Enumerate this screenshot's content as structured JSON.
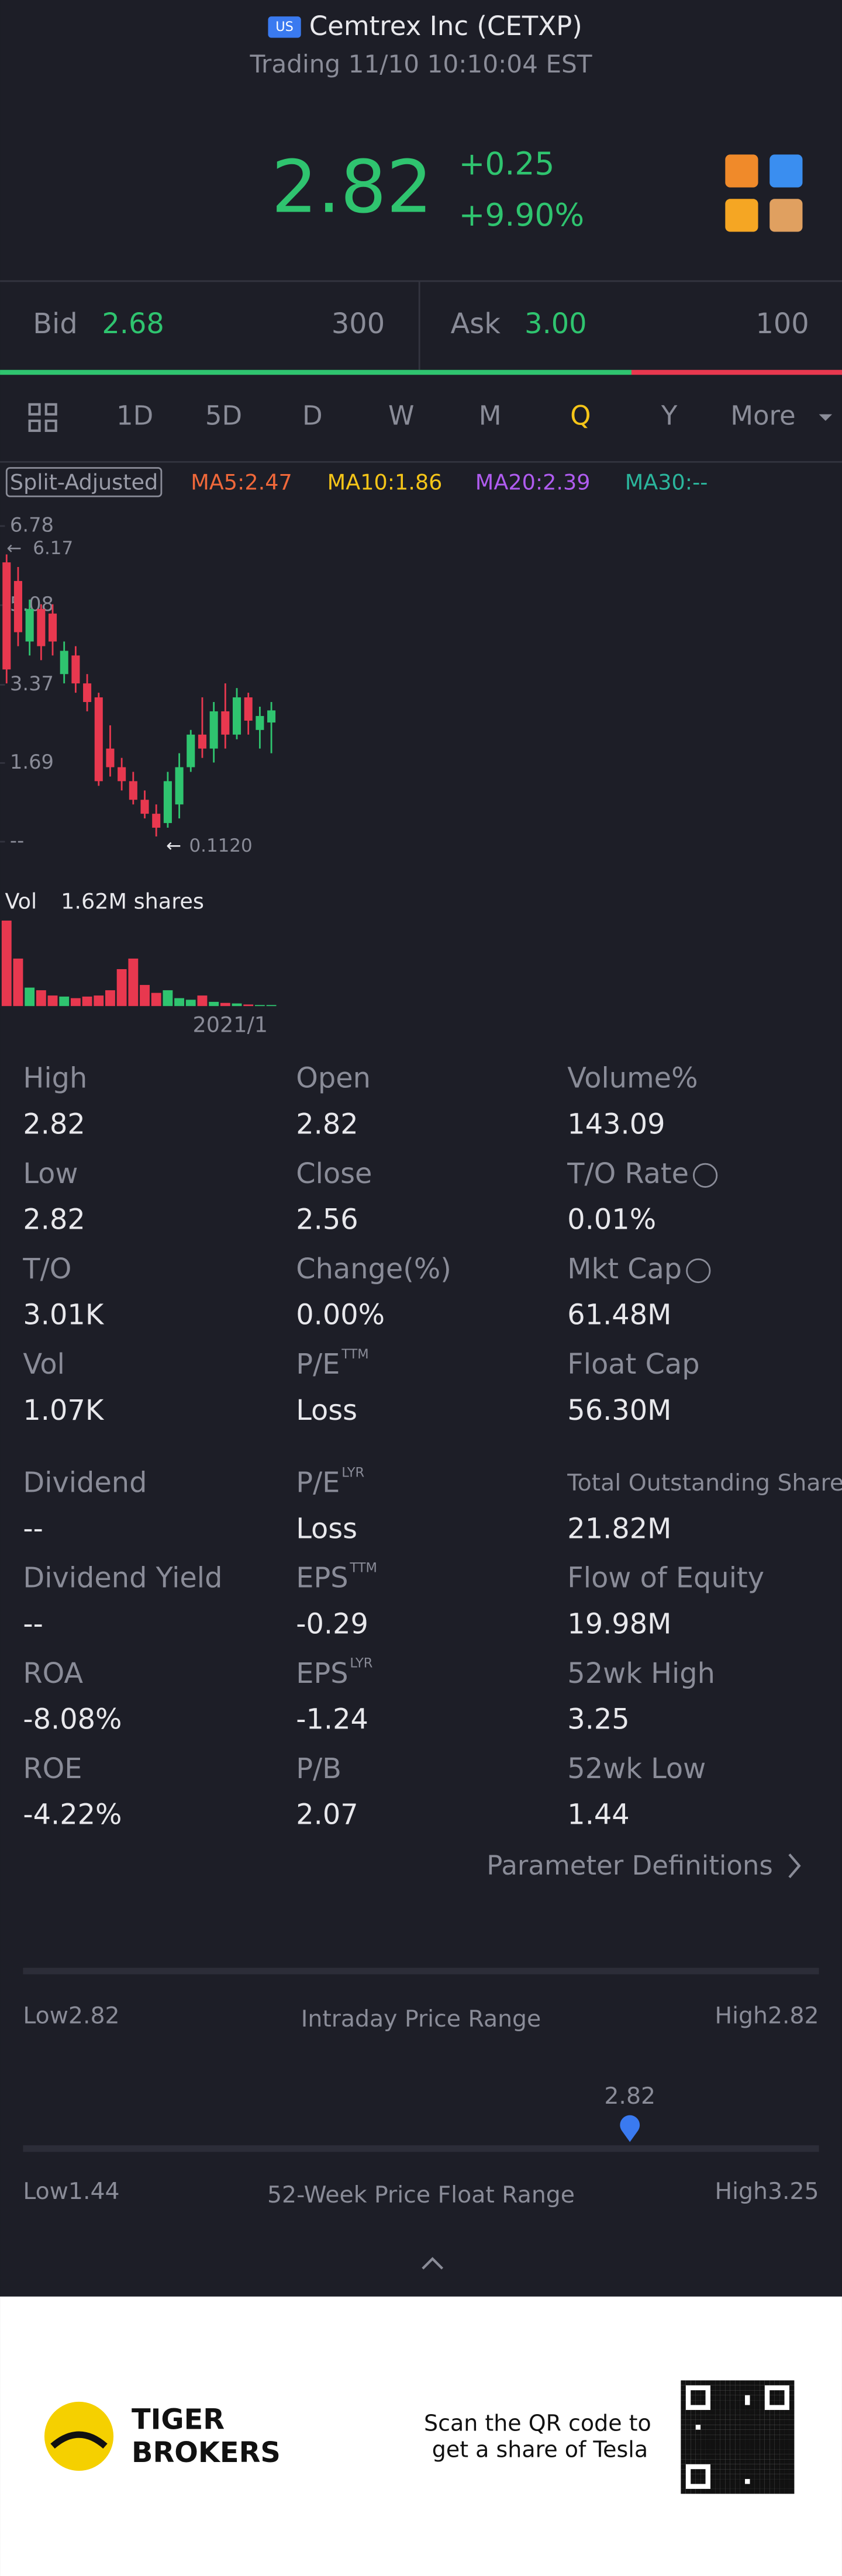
{
  "header": {
    "badge": "US",
    "title": "Cemtrex Inc (CETXP)",
    "status": "Trading 11/10 10:10:04 EST"
  },
  "quote": {
    "price": "2.82",
    "change": "+0.25",
    "change_pct": "+9.90%"
  },
  "bid": {
    "label": "Bid",
    "price": "2.68",
    "size": 300
  },
  "ask": {
    "label": "Ask",
    "price": "3.00",
    "size": 100
  },
  "tabs": {
    "items": [
      "1D",
      "5D",
      "D",
      "W",
      "M",
      "Q",
      "Y",
      "More"
    ],
    "active": 5
  },
  "chart_data": {
    "type": "candlestick",
    "legend": [
      {
        "text": "Split-Adjusted",
        "color": "#9a9ca8"
      },
      {
        "text": "MA5:2.47",
        "color": "#f0683a"
      },
      {
        "text": "MA10:1.86",
        "color": "#f5c518"
      },
      {
        "text": "MA20:2.39",
        "color": "#b05cf0"
      },
      {
        "text": "MA30:--",
        "color": "#2bb59c"
      }
    ],
    "ylim": [
      0,
      6.78
    ],
    "yticks": [
      6.78,
      5.08,
      3.37,
      1.69,
      {
        "value": 0,
        "label": "--"
      }
    ],
    "max_label": "6.17",
    "min_label": "0.1120",
    "up_color": "#2fc46f",
    "down_color": "#e8384f",
    "candles": [
      [
        6.0,
        6.17,
        3.4,
        3.7
      ],
      [
        5.6,
        5.9,
        4.2,
        4.5
      ],
      [
        4.3,
        5.2,
        4.0,
        5.0
      ],
      [
        5.0,
        5.1,
        3.9,
        4.2
      ],
      [
        4.9,
        5.1,
        4.0,
        4.3
      ],
      [
        3.6,
        4.3,
        3.4,
        4.1
      ],
      [
        4.0,
        4.2,
        3.2,
        3.4
      ],
      [
        3.4,
        3.6,
        2.8,
        3.0
      ],
      [
        3.1,
        3.2,
        1.2,
        1.3
      ],
      [
        2.0,
        2.5,
        1.4,
        1.6
      ],
      [
        1.6,
        1.8,
        1.1,
        1.3
      ],
      [
        1.3,
        1.5,
        0.8,
        0.9
      ],
      [
        0.9,
        1.1,
        0.5,
        0.6
      ],
      [
        0.6,
        0.8,
        0.112,
        0.3
      ],
      [
        0.4,
        1.5,
        0.3,
        1.3
      ],
      [
        0.8,
        1.9,
        0.5,
        1.6
      ],
      [
        1.6,
        2.4,
        1.5,
        2.3
      ],
      [
        2.3,
        3.1,
        1.8,
        2.0
      ],
      [
        2.0,
        3.0,
        1.7,
        2.8
      ],
      [
        2.8,
        3.4,
        2.0,
        2.3
      ],
      [
        2.3,
        3.3,
        2.2,
        3.1
      ],
      [
        3.1,
        3.2,
        2.3,
        2.6
      ],
      [
        2.4,
        2.9,
        2.0,
        2.7
      ],
      [
        2.56,
        3.0,
        1.9,
        2.82
      ]
    ],
    "volume_label": "Vol",
    "volume_value": "1.62M shares",
    "volumes": [
      1.62,
      0.9,
      0.35,
      0.3,
      0.2,
      0.18,
      0.15,
      0.18,
      0.2,
      0.3,
      0.7,
      0.9,
      0.4,
      0.25,
      0.3,
      0.15,
      0.12,
      0.2,
      0.08,
      0.06,
      0.05,
      0.03,
      0.02,
      0.02
    ],
    "vlim": [
      0,
      1.62
    ],
    "x_label": "2021/1"
  },
  "stats": [
    [
      {
        "label": "High",
        "value": "2.82"
      },
      {
        "label": "Open",
        "value": "2.82"
      },
      {
        "label": "Volume%",
        "value": "143.09"
      }
    ],
    [
      {
        "label": "Low",
        "value": "2.82"
      },
      {
        "label": "Close",
        "value": "2.56"
      },
      {
        "label": "T/O Rate",
        "value": "0.01%",
        "info": true
      }
    ],
    [
      {
        "label": "T/O",
        "value": "3.01K"
      },
      {
        "label": "Change(%)",
        "value": "0.00%"
      },
      {
        "label": "Mkt Cap",
        "value": "61.48M",
        "info": true
      }
    ],
    [
      {
        "label": "Vol",
        "value": "1.07K"
      },
      {
        "label": "P/E",
        "sup": "TTM",
        "value": "Loss"
      },
      {
        "label": "Float Cap",
        "value": "56.30M"
      }
    ],
    [
      {
        "label": "Dividend",
        "value": "--"
      },
      {
        "label": "P/E",
        "sup": "LYR",
        "value": "Loss"
      },
      {
        "label": "Total Outstanding Shares",
        "value": "21.82M"
      }
    ],
    [
      {
        "label": "Dividend Yield",
        "value": "--"
      },
      {
        "label": "EPS",
        "sup": "TTM",
        "value": "-0.29"
      },
      {
        "label": "Flow of Equity",
        "value": "19.98M"
      }
    ],
    [
      {
        "label": "ROA",
        "value": "-8.08%"
      },
      {
        "label": "EPS",
        "sup": "LYR",
        "value": "-1.24"
      },
      {
        "label": "52wk High",
        "value": "3.25"
      }
    ],
    [
      {
        "label": "ROE",
        "value": "-4.22%"
      },
      {
        "label": "P/B",
        "value": "2.07"
      },
      {
        "label": "52wk Low",
        "value": "1.44"
      }
    ]
  ],
  "param_link": "Parameter Definitions",
  "intraday": {
    "low_label": "Low",
    "low": 2.82,
    "title": "Intraday Price Range",
    "high_label": "High",
    "high": 2.82
  },
  "week52": {
    "low_label": "Low",
    "low": 1.44,
    "title": "52-Week Price Float Range",
    "high_label": "High",
    "high": 3.25,
    "current": 2.82
  },
  "footer": {
    "brand1": "TIGER",
    "brand2": "BROKERS",
    "cta1": "Scan the QR code to",
    "cta2": "get a share of Tesla"
  }
}
